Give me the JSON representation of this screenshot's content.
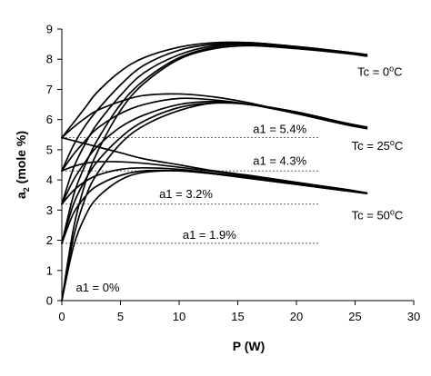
{
  "chart_data": {
    "type": "line",
    "xlabel": "P (W)",
    "ylabel_main": "a",
    "ylabel_sub": "2",
    "ylabel_rest": " (mole %)",
    "xlim": [
      0,
      30
    ],
    "ylim": [
      0,
      9
    ],
    "xticks": [
      0,
      5,
      10,
      15,
      20,
      25,
      30
    ],
    "yticks": [
      0,
      1,
      2,
      3,
      4,
      5,
      6,
      7,
      8,
      9
    ],
    "grid": false,
    "legend": "none",
    "reference_lines": [
      {
        "label": "a1 = 5.4%",
        "y": 5.4,
        "x_end": 22
      },
      {
        "label": "a1 = 4.3%",
        "y": 4.3,
        "x_end": 22
      },
      {
        "label": "a1 = 3.2%",
        "y": 3.2,
        "x_end": 22
      },
      {
        "label": "a1 = 1.9%",
        "y": 1.9,
        "x_end": 22
      }
    ],
    "annotations": [
      {
        "id": "a1-0",
        "text": "a1 = 0%",
        "x": 1.2,
        "y": 0.3
      },
      {
        "id": "a1-19",
        "text": "a1 = 1.9%",
        "x": 10.3,
        "y": 2.05
      },
      {
        "id": "a1-32",
        "text": "a1 = 3.2%",
        "x": 8.3,
        "y": 3.4
      },
      {
        "id": "a1-43",
        "text": "a1 = 4.3%",
        "x": 16.3,
        "y": 4.5
      },
      {
        "id": "a1-54",
        "text": "a1 = 5.4%",
        "x": 16.3,
        "y": 5.55
      }
    ],
    "groups": [
      {
        "label": "Tc = 0oC",
        "label_base": "Tc = 0",
        "label_sup": "o",
        "label_end": "C",
        "label_x": 25.2,
        "label_y": 7.45
      },
      {
        "label": "Tc = 25oC",
        "label_base": "Tc = 25",
        "label_sup": "o",
        "label_end": "C",
        "label_x": 24.7,
        "label_y": 5.0
      },
      {
        "label": "Tc = 50oC",
        "label_base": "Tc = 50",
        "label_sup": "o",
        "label_end": "C",
        "label_x": 24.7,
        "label_y": 2.7
      }
    ],
    "series": [
      {
        "group": "Tc = 0oC",
        "a1": "0%",
        "x": [
          0,
          1,
          2,
          3,
          5,
          7,
          10,
          13,
          16,
          20,
          24,
          26
        ],
        "y": [
          0.0,
          2.4,
          3.9,
          4.9,
          6.3,
          7.2,
          8.0,
          8.35,
          8.45,
          8.35,
          8.2,
          8.1
        ]
      },
      {
        "group": "Tc = 0oC",
        "a1": "1.9%",
        "x": [
          0,
          1,
          2,
          3,
          5,
          7,
          10,
          13,
          16,
          20,
          24,
          26
        ],
        "y": [
          1.9,
          3.5,
          4.5,
          5.3,
          6.5,
          7.3,
          8.05,
          8.4,
          8.5,
          8.38,
          8.22,
          8.12
        ]
      },
      {
        "group": "Tc = 0oC",
        "a1": "3.2%",
        "x": [
          0,
          1,
          2,
          3,
          5,
          7,
          10,
          13,
          16,
          20,
          24,
          26
        ],
        "y": [
          3.2,
          4.4,
          5.2,
          5.85,
          6.8,
          7.55,
          8.15,
          8.45,
          8.52,
          8.4,
          8.25,
          8.15
        ]
      },
      {
        "group": "Tc = 0oC",
        "a1": "4.3%",
        "x": [
          0,
          1,
          2,
          3,
          5,
          7,
          10,
          13,
          16,
          20,
          24,
          26
        ],
        "y": [
          4.3,
          5.15,
          5.8,
          6.3,
          7.15,
          7.8,
          8.3,
          8.5,
          8.55,
          8.42,
          8.25,
          8.15
        ]
      },
      {
        "group": "Tc = 0oC",
        "a1": "5.4%",
        "x": [
          0,
          1,
          2,
          3,
          5,
          7,
          10,
          13,
          16,
          20,
          24,
          26
        ],
        "y": [
          5.4,
          5.9,
          6.4,
          6.9,
          7.6,
          8.05,
          8.4,
          8.55,
          8.55,
          8.42,
          8.25,
          8.15
        ]
      },
      {
        "group": "Tc = 25oC",
        "a1": "0%",
        "x": [
          0,
          1,
          2,
          3,
          5,
          7,
          10,
          13,
          16,
          20,
          24,
          26
        ],
        "y": [
          0.0,
          2.1,
          3.4,
          4.2,
          5.2,
          5.8,
          6.3,
          6.55,
          6.5,
          6.25,
          5.9,
          5.75
        ]
      },
      {
        "group": "Tc = 25oC",
        "a1": "1.9%",
        "x": [
          0,
          1,
          2,
          3,
          5,
          7,
          10,
          13,
          16,
          20,
          24,
          26
        ],
        "y": [
          1.9,
          3.2,
          4.0,
          4.6,
          5.4,
          5.95,
          6.4,
          6.55,
          6.5,
          6.25,
          5.9,
          5.75
        ]
      },
      {
        "group": "Tc = 25oC",
        "a1": "3.2%",
        "x": [
          0,
          1,
          2,
          3,
          5,
          7,
          10,
          13,
          16,
          20,
          24,
          26
        ],
        "y": [
          3.2,
          4.0,
          4.6,
          5.1,
          5.75,
          6.15,
          6.5,
          6.6,
          6.5,
          6.25,
          5.9,
          5.75
        ]
      },
      {
        "group": "Tc = 25oC",
        "a1": "4.3%",
        "x": [
          0,
          1,
          2,
          3,
          5,
          7,
          10,
          13,
          16,
          20,
          24,
          26
        ],
        "y": [
          4.3,
          4.85,
          5.3,
          5.7,
          6.2,
          6.5,
          6.7,
          6.65,
          6.5,
          6.2,
          5.85,
          5.7
        ]
      },
      {
        "group": "Tc = 25oC",
        "a1": "5.4%",
        "x": [
          0,
          1,
          2,
          3,
          5,
          7,
          10,
          13,
          16,
          20,
          24,
          26
        ],
        "y": [
          5.4,
          5.75,
          6.05,
          6.3,
          6.6,
          6.8,
          6.85,
          6.75,
          6.55,
          6.2,
          5.85,
          5.7
        ]
      },
      {
        "group": "Tc = 50oC",
        "a1": "0%",
        "x": [
          0,
          1,
          2,
          3,
          5,
          7,
          10,
          13,
          16,
          20,
          24,
          26
        ],
        "y": [
          0.0,
          1.8,
          2.8,
          3.4,
          4.0,
          4.25,
          4.3,
          4.2,
          4.05,
          3.85,
          3.65,
          3.55
        ]
      },
      {
        "group": "Tc = 50oC",
        "a1": "1.9%",
        "x": [
          0,
          1,
          2,
          3,
          5,
          7,
          10,
          13,
          16,
          20,
          24,
          26
        ],
        "y": [
          1.9,
          2.9,
          3.45,
          3.8,
          4.15,
          4.3,
          4.3,
          4.2,
          4.05,
          3.85,
          3.65,
          3.55
        ]
      },
      {
        "group": "Tc = 50oC",
        "a1": "3.2%",
        "x": [
          0,
          1,
          2,
          3,
          5,
          7,
          10,
          13,
          16,
          20,
          24,
          26
        ],
        "y": [
          3.2,
          3.65,
          3.95,
          4.15,
          4.35,
          4.4,
          4.35,
          4.22,
          4.08,
          3.87,
          3.66,
          3.55
        ]
      },
      {
        "group": "Tc = 50oC",
        "a1": "4.3%",
        "x": [
          0,
          1,
          2,
          3,
          5,
          7,
          10,
          13,
          16,
          20,
          24,
          26
        ],
        "y": [
          4.3,
          4.45,
          4.55,
          4.6,
          4.6,
          4.55,
          4.42,
          4.28,
          4.12,
          3.9,
          3.68,
          3.56
        ]
      },
      {
        "group": "Tc = 50oC",
        "a1": "5.4%",
        "x": [
          0,
          1,
          2,
          3,
          5,
          7,
          10,
          13,
          16,
          20,
          24,
          26
        ],
        "y": [
          5.4,
          5.3,
          5.2,
          5.1,
          4.9,
          4.7,
          4.5,
          4.3,
          4.15,
          3.92,
          3.7,
          3.57
        ]
      }
    ]
  }
}
